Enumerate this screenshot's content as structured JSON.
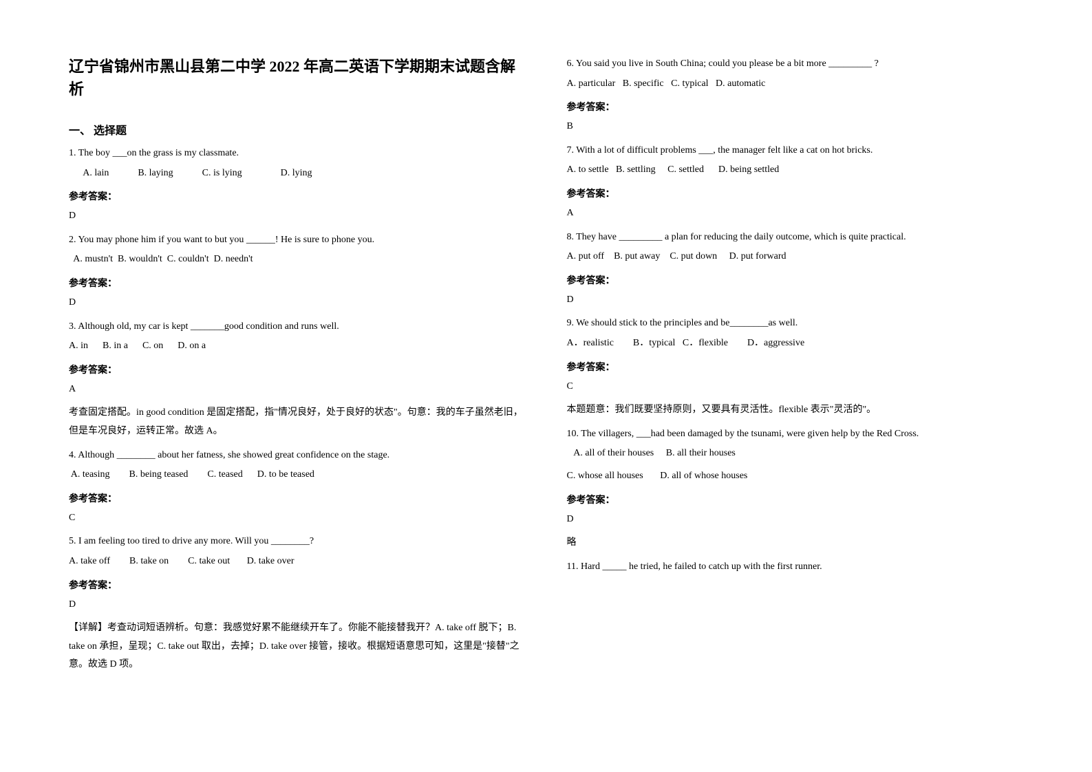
{
  "title": "辽宁省锦州市黑山县第二中学 2022 年高二英语下学期期末试题含解析",
  "section_header": "一、 选择题",
  "answer_label": "参考答案：",
  "questions": [
    {
      "q": "1. The boy ___on the grass is my classmate.",
      "opts": "  A. lain            B. laying            C. is lying                D. lying",
      "ans": "D",
      "exp": ""
    },
    {
      "q": "2. You may phone him if you want to but you ______! He is sure to phone you.",
      "opts": "  A. mustn't  B. wouldn't  C. couldn't  D. needn't",
      "ans": "D",
      "exp": ""
    },
    {
      "q": "3. Although old, my car is kept _______good condition and runs well.",
      "opts": "A. in      B. in a      C. on      D. on a",
      "ans": "A",
      "exp": "考查固定搭配。in good condition 是固定搭配，指\"情况良好，处于良好的状态\"。句意：我的车子虽然老旧，但是车况良好，运转正常。故选 A。"
    },
    {
      "q": "4. Although ________ about her fatness, she showed great confidence on the stage.",
      "opts": " A. teasing        B. being teased        C. teased      D. to be teased",
      "ans": "C",
      "exp": ""
    },
    {
      "q": "5. I am feeling too tired to drive any more. Will you ________?",
      "opts": "A. take off        B. take on        C. take out       D. take over",
      "ans": "D",
      "exp": "【详解】考查动词短语辨析。句意：我感觉好累不能继续开车了。你能不能接替我开？A. take off 脱下；B. take on 承担，呈现；C. take out 取出，去掉；D. take over 接管，接收。根据短语意思可知，这里是\"接替\"之意。故选 D 项。"
    },
    {
      "q": "6. You said you live in South China; could you please be a bit more _________ ?",
      "opts": "A. particular   B. specific   C. typical   D. automatic",
      "ans": "B",
      "exp": ""
    },
    {
      "q": "7. With a lot of difficult problems ___, the manager felt like a cat on hot bricks.",
      "opts": "A. to settle   B. settling     C. settled      D. being settled",
      "ans": "A",
      "exp": ""
    },
    {
      "q": "8. They have _________ a plan for reducing the daily outcome, which is quite practical.",
      "opts": "A. put off    B. put away    C. put down     D. put forward",
      "ans": "D",
      "exp": ""
    },
    {
      "q": "9. We should stick to the principles and be________as well.",
      "opts": "A．realistic        B．typical   C．flexible        D．aggressive",
      "ans": "C",
      "exp": "本题题意：我们既要坚持原则，又要具有灵活性。flexible 表示\"灵活的\"。"
    },
    {
      "q": "10. The villagers, ___had been damaged by the tsunami, were given help by the Red Cross.",
      "opts1": "   A. all of their houses     B. all their houses",
      "opts2": "C. whose all houses       D. all of whose houses",
      "ans": "D",
      "exp": "略"
    },
    {
      "q": "11. Hard _____ he tried, he failed to catch up with the first runner.",
      "opts": "",
      "ans": "",
      "exp": ""
    }
  ]
}
